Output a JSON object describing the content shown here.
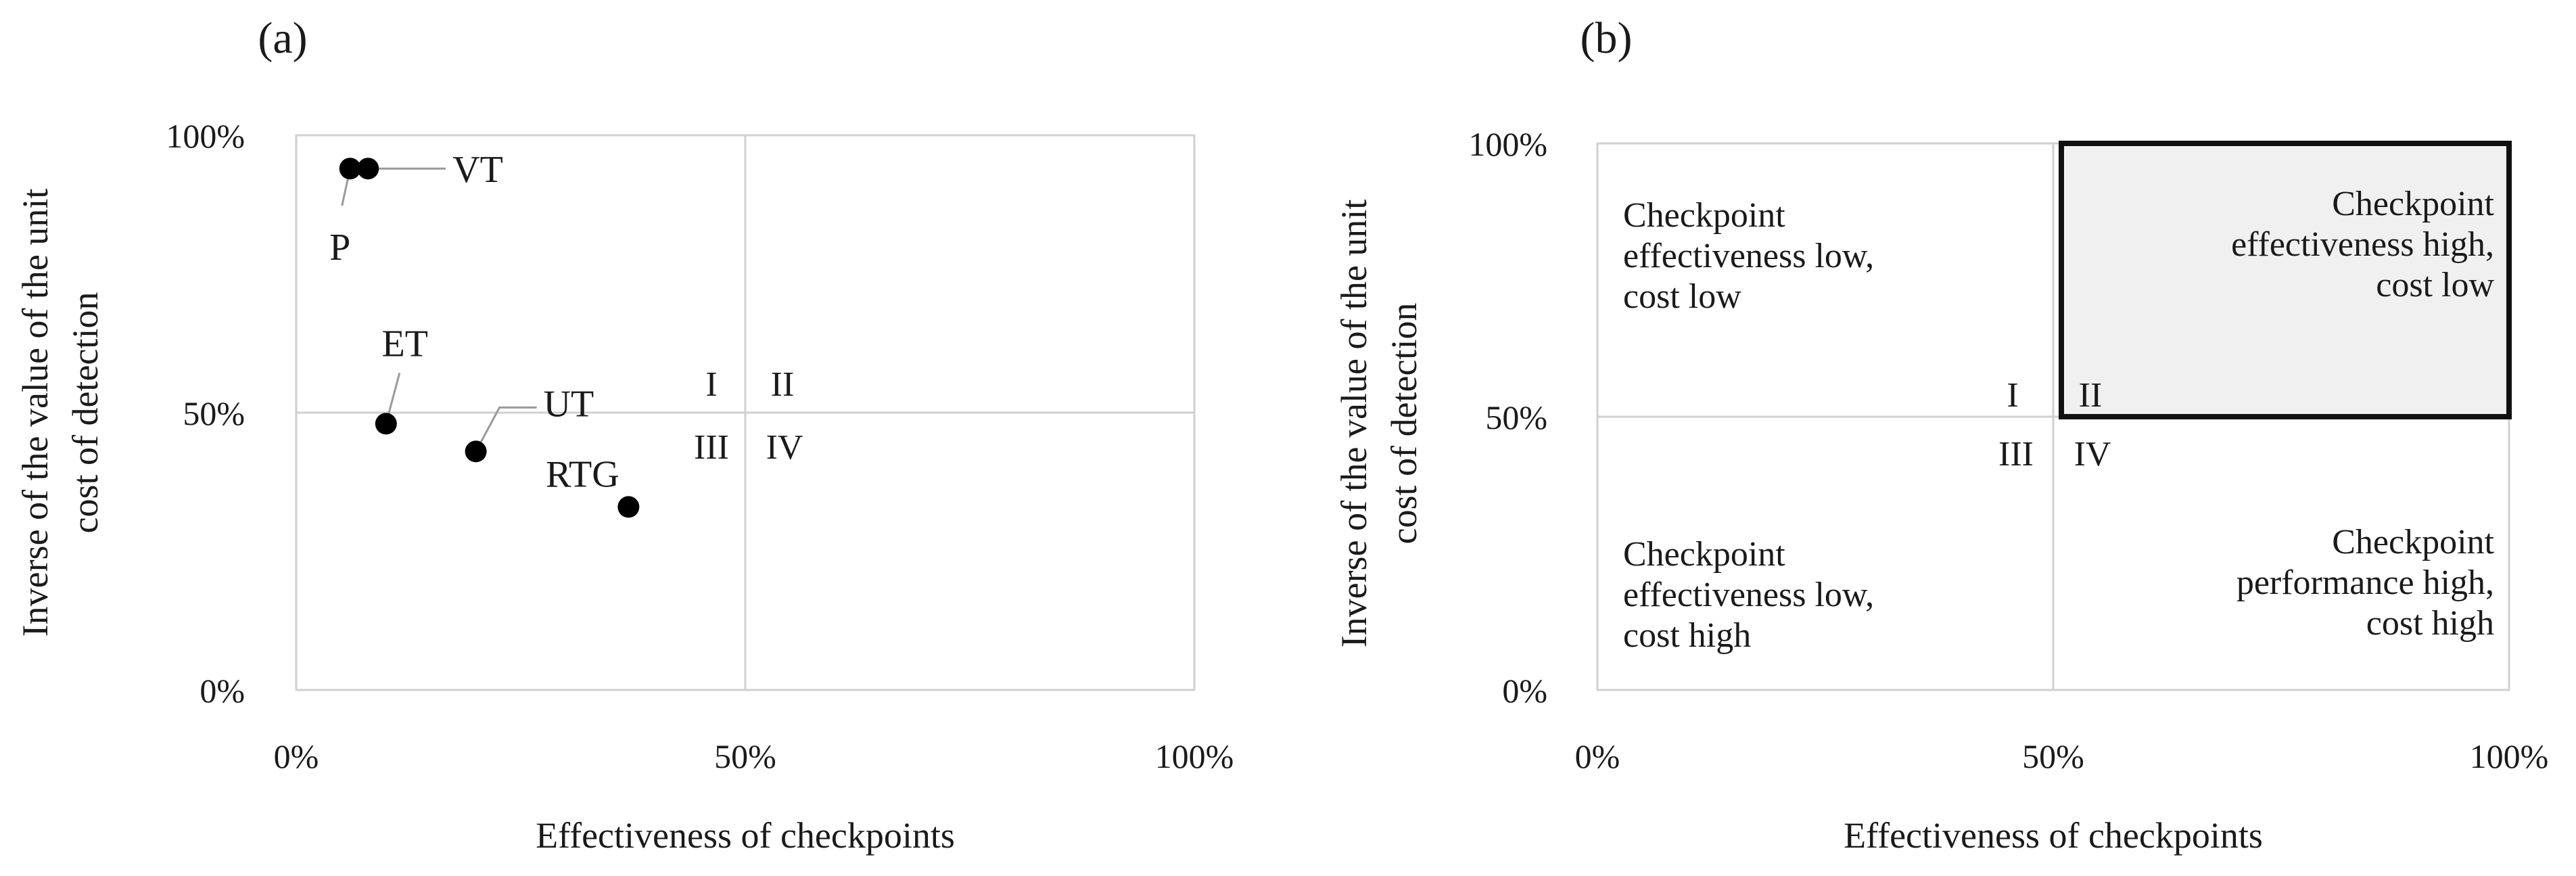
{
  "chart_data": [
    {
      "panel_label": "(a)",
      "type": "scatter",
      "xlabel": "Effectiveness of checkpoints",
      "ylabel": [
        "Inverse of the value of the unit",
        "cost of detection"
      ],
      "xlim": [
        0,
        100
      ],
      "ylim": [
        0,
        100
      ],
      "x_ticks": [
        "0%",
        "50%",
        "100%"
      ],
      "y_ticks": [
        "0%",
        "50%",
        "100%"
      ],
      "quadrant_labels": [
        "I",
        "II",
        "III",
        "IV"
      ],
      "points": [
        {
          "label": "P",
          "x": 6,
          "y": 94
        },
        {
          "label": "VT",
          "x": 8,
          "y": 94
        },
        {
          "label": "ET",
          "x": 10,
          "y": 48
        },
        {
          "label": "UT",
          "x": 20,
          "y": 43
        },
        {
          "label": "RTG",
          "x": 37,
          "y": 33
        }
      ]
    },
    {
      "panel_label": "(b)",
      "type": "quadrant",
      "xlabel": "Effectiveness of checkpoints",
      "ylabel": [
        "Inverse of the value of the unit",
        "cost of detection"
      ],
      "xlim": [
        0,
        100
      ],
      "ylim": [
        0,
        100
      ],
      "x_ticks": [
        "0%",
        "50%",
        "100%"
      ],
      "y_ticks": [
        "0%",
        "50%",
        "100%"
      ],
      "quadrant_labels": [
        "I",
        "II",
        "III",
        "IV"
      ],
      "highlighted_quadrant": "II",
      "quadrants": {
        "I": [
          "Checkpoint",
          "effectiveness low,",
          "cost low"
        ],
        "II": [
          "Checkpoint",
          "effectiveness high,",
          "cost low"
        ],
        "III": [
          "Checkpoint",
          "effectiveness low,",
          "cost high"
        ],
        "IV": [
          "Checkpoint",
          "performance high,",
          "cost high"
        ]
      }
    }
  ]
}
